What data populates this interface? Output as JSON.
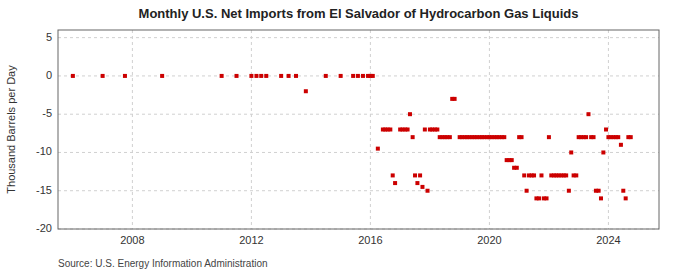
{
  "chart_data": {
    "type": "scatter",
    "title": "Monthly U.S. Net Imports from El Salvador of Hydrocarbon Gas Liquids",
    "ylabel": "Thousand Barrels per Day",
    "annotations": [
      "Source: U.S. Energy Information Administration"
    ],
    "color": "#cc0000",
    "marker": "square",
    "grid": true,
    "xlim": [
      2005.5,
      2025.7
    ],
    "xticks": [
      2008,
      2012,
      2016,
      2020,
      2024
    ],
    "ylim": [
      -20,
      6
    ],
    "yticks": [
      -20,
      -15,
      -10,
      -5,
      0,
      5
    ],
    "x": [
      2006.0,
      2007.0,
      2007.75,
      2009.0,
      2011.0,
      2011.5,
      2012.0,
      2012.17,
      2012.33,
      2012.5,
      2013.0,
      2013.25,
      2013.5,
      2013.83,
      2014.5,
      2015.0,
      2015.42,
      2015.58,
      2015.75,
      2015.92,
      2016.0,
      2016.08,
      2016.25,
      2016.42,
      2016.5,
      2016.58,
      2016.67,
      2016.75,
      2016.83,
      2017.0,
      2017.08,
      2017.17,
      2017.25,
      2017.33,
      2017.42,
      2017.5,
      2017.58,
      2017.67,
      2017.75,
      2017.83,
      2017.92,
      2018.0,
      2018.08,
      2018.17,
      2018.25,
      2018.33,
      2018.42,
      2018.5,
      2018.58,
      2018.67,
      2018.75,
      2018.83,
      2019.0,
      2019.08,
      2019.17,
      2019.25,
      2019.33,
      2019.42,
      2019.5,
      2019.58,
      2019.67,
      2019.75,
      2019.83,
      2019.92,
      2020.0,
      2020.08,
      2020.17,
      2020.25,
      2020.33,
      2020.42,
      2020.5,
      2020.58,
      2020.67,
      2020.75,
      2020.83,
      2020.92,
      2021.0,
      2021.08,
      2021.17,
      2021.25,
      2021.33,
      2021.42,
      2021.5,
      2021.58,
      2021.67,
      2021.75,
      2021.83,
      2021.92,
      2022.0,
      2022.08,
      2022.17,
      2022.25,
      2022.33,
      2022.42,
      2022.5,
      2022.58,
      2022.67,
      2022.75,
      2022.83,
      2022.92,
      2023.0,
      2023.08,
      2023.17,
      2023.25,
      2023.33,
      2023.42,
      2023.5,
      2023.58,
      2023.67,
      2023.75,
      2023.83,
      2023.92,
      2024.0,
      2024.08,
      2024.17,
      2024.25,
      2024.33,
      2024.42,
      2024.5,
      2024.58,
      2024.67,
      2024.75
    ],
    "values": [
      0,
      0,
      0,
      0,
      0,
      0,
      0,
      0,
      0,
      0,
      0,
      0,
      0,
      -2,
      0,
      0,
      0,
      0,
      0,
      0,
      0,
      0,
      -9.5,
      -7,
      -7,
      -7,
      -7,
      -13,
      -14,
      -7,
      -7,
      -7,
      -7,
      -5,
      -8,
      -13,
      -14,
      -13,
      -14.5,
      -7,
      -15,
      -7,
      -7,
      -7,
      -7,
      -8,
      -8,
      -8,
      -8,
      -8,
      -3,
      -3,
      -8,
      -8,
      -8,
      -8,
      -8,
      -8,
      -8,
      -8,
      -8,
      -8,
      -8,
      -8,
      -8,
      -8,
      -8,
      -8,
      -8,
      -8,
      -8,
      -11,
      -11,
      -11,
      -12,
      -12,
      -8,
      -8,
      -13,
      -15,
      -13,
      -13,
      -13,
      -16,
      -16,
      -13,
      -16,
      -16,
      -8,
      -13,
      -13,
      -13,
      -13,
      -13,
      -13,
      -13,
      -15,
      -10,
      -13,
      -13,
      -8,
      -8,
      -8,
      -8,
      -5,
      -8,
      -8,
      -15,
      -15,
      -16,
      -10,
      -7,
      -8,
      -8,
      -8,
      -8,
      -8,
      -9,
      -15,
      -16,
      -8,
      -8
    ]
  }
}
